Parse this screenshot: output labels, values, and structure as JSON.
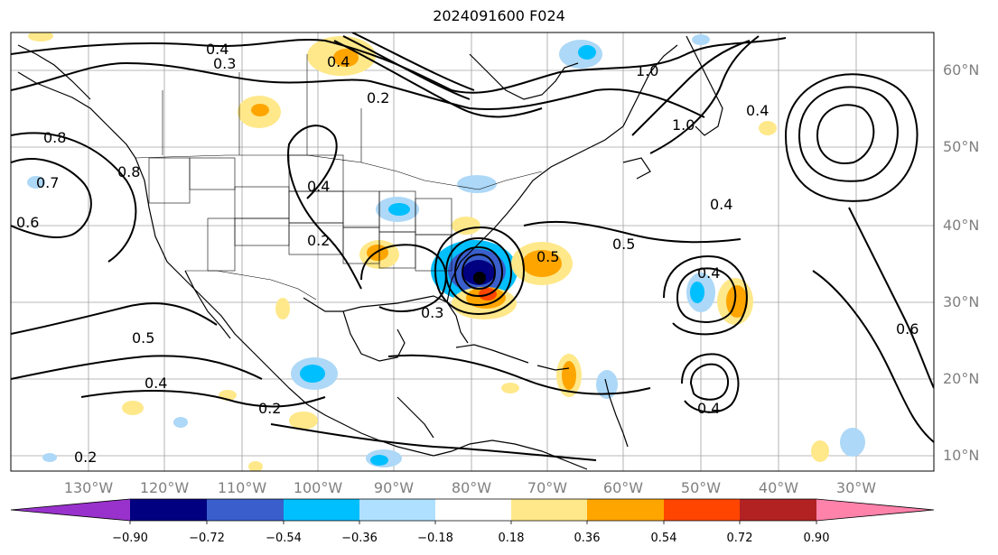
{
  "title": "2024091600 F024",
  "map": {
    "lat_labels": [
      "60°N",
      "50°N",
      "40°N",
      "30°N",
      "20°N",
      "10°N"
    ],
    "lon_labels": [
      "130°W",
      "120°W",
      "110°W",
      "100°W",
      "90°W",
      "80°W",
      "70°W",
      "60°W",
      "50°W",
      "40°W",
      "30°W"
    ],
    "contour_labels": [
      "0.4",
      "0.3",
      "0.4",
      "0.2",
      "1.0",
      "1.0",
      "0.4",
      "0.8",
      "0.7",
      "0.6",
      "0.8",
      "0.4",
      "0.2",
      "0.5",
      "0.5",
      "0.4",
      "0.4",
      "0.3",
      "0.4",
      "0.2",
      "0.4",
      "0.2",
      "0.5",
      "0.6"
    ],
    "colors": {
      "land_line": "#000000",
      "grid": "#a0a0a0",
      "blue_light": "#add8f7",
      "blue_mid": "#00bfff",
      "blue_dark": "#3a5fcd",
      "navy": "#000080",
      "yellow": "#ffe88a",
      "orange": "#ffa500",
      "red_orange": "#ff4500",
      "red": "#b22222"
    }
  },
  "colorbar": {
    "ticks": [
      "−0.90",
      "−0.72",
      "−0.54",
      "−0.36",
      "−0.18",
      "0.18",
      "0.36",
      "0.54",
      "0.72",
      "0.90"
    ],
    "colors": [
      "#9932cc",
      "#000080",
      "#3a5fcd",
      "#00bfff",
      "#b0e0ff",
      "#ffffff",
      "#ffe88a",
      "#ffa500",
      "#ff4500",
      "#b22222",
      "#ff82ab"
    ]
  }
}
